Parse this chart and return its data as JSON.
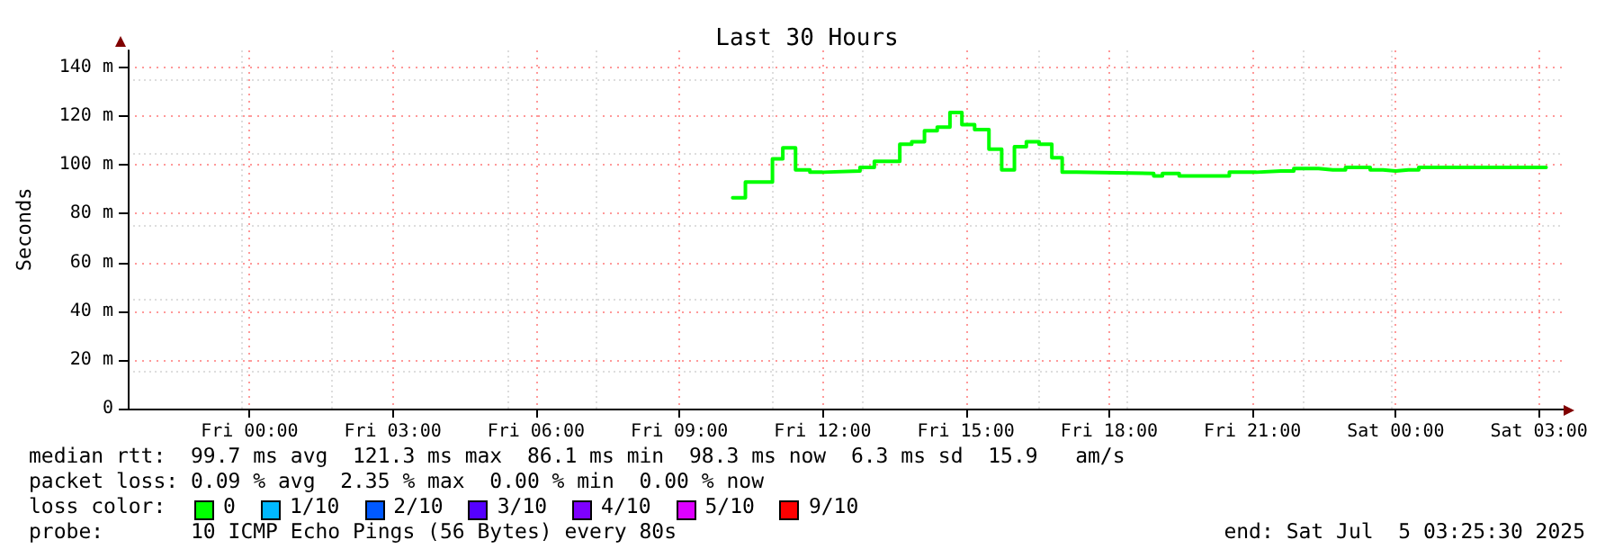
{
  "chart_data": {
    "type": "step",
    "title": "Last 30 Hours",
    "ylabel": "Seconds",
    "x": [
      "2025-07-04T10:07",
      "2025-07-04T10:23",
      "2025-07-04T10:57",
      "2025-07-04T11:10",
      "2025-07-04T11:26",
      "2025-07-04T11:44",
      "2025-07-04T12:00",
      "2025-07-04T12:47",
      "2025-07-04T13:05",
      "2025-07-04T13:37",
      "2025-07-04T13:52",
      "2025-07-04T14:08",
      "2025-07-04T14:24",
      "2025-07-04T14:40",
      "2025-07-04T14:55",
      "2025-07-04T15:11",
      "2025-07-04T15:29",
      "2025-07-04T15:45",
      "2025-07-04T16:01",
      "2025-07-04T16:16",
      "2025-07-04T16:32",
      "2025-07-04T16:48",
      "2025-07-04T17:01",
      "2025-07-04T17:19",
      "2025-07-04T18:56",
      "2025-07-04T19:07",
      "2025-07-04T19:28",
      "2025-07-04T20:31",
      "2025-07-04T21:05",
      "2025-07-04T21:36",
      "2025-07-04T21:52",
      "2025-07-04T22:23",
      "2025-07-04T22:41",
      "2025-07-04T22:57",
      "2025-07-04T23:28",
      "2025-07-04T23:44",
      "2025-07-05T00:00",
      "2025-07-05T00:16",
      "2025-07-05T00:29",
      "2025-07-05T03:09"
    ],
    "series": [
      {
        "color": "#00ff00",
        "values": [
          86.5,
          93,
          102.5,
          107,
          98,
          97,
          97.5,
          99,
          101.5,
          108.5,
          109.5,
          114,
          115.5,
          121.5,
          116.5,
          114.5,
          106.5,
          98,
          107.5,
          109.5,
          108.5,
          103,
          97,
          96.5,
          95.5,
          96.5,
          95.5,
          97,
          97.5,
          97.5,
          98.5,
          98,
          98,
          99,
          98,
          97.5,
          98,
          98,
          99,
          99
        ]
      }
    ],
    "xlim": [
      "2025-07-03T21:27",
      "2025-07-05T03:31"
    ],
    "xticks": [
      {
        "value": "2025-07-04T00:00",
        "label": "Fri 00:00"
      },
      {
        "value": "2025-07-04T03:00",
        "label": "Fri 03:00"
      },
      {
        "value": "2025-07-04T06:00",
        "label": "Fri 06:00"
      },
      {
        "value": "2025-07-04T09:00",
        "label": "Fri 09:00"
      },
      {
        "value": "2025-07-04T12:00",
        "label": "Fri 12:00"
      },
      {
        "value": "2025-07-04T15:00",
        "label": "Fri 15:00"
      },
      {
        "value": "2025-07-04T18:00",
        "label": "Fri 18:00"
      },
      {
        "value": "2025-07-04T21:00",
        "label": "Fri 21:00"
      },
      {
        "value": "2025-07-05T00:00",
        "label": "Sat 00:00"
      },
      {
        "value": "2025-07-05T03:00",
        "label": "Sat 03:00"
      }
    ],
    "ylim": [
      0,
      147
    ],
    "yticks": [
      0,
      {
        "value": 20,
        "label": "20 m"
      },
      {
        "value": 40,
        "label": "40 m"
      },
      {
        "value": 60,
        "label": "60 m"
      },
      {
        "value": 80,
        "label": "80 m"
      },
      {
        "value": 100,
        "label": "100 m"
      },
      {
        "value": 120,
        "label": "120 m"
      },
      {
        "value": 140,
        "label": "140 m"
      }
    ],
    "grid": true,
    "marker": "none",
    "line_style": "solid",
    "annotations": [
      "median rtt:  99.7 ms avg  121.3 ms max  86.1 ms min  98.3 ms now  6.3 ms sd  15.9   am/s",
      "packet loss: 0.09 % avg  2.35 % max  0.00 % min  0.00 % now",
      "loss color:",
      "0",
      "1/10",
      "2/10",
      "3/10",
      "4/10",
      "5/10",
      "9/10",
      "probe:       10 ICMP Echo Pings (56 Bytes) every 80s",
      "end: Sat Jul  5 03:25:30 2025"
    ]
  }
}
